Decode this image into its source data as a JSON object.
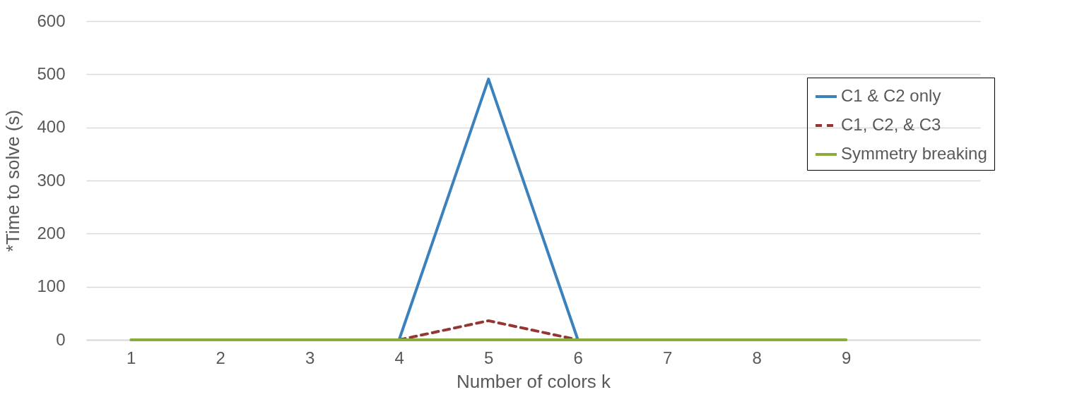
{
  "chart_data": {
    "type": "line",
    "xlabel": "Number of colors k",
    "ylabel": "*Time to solve (s)",
    "categories": [
      "1",
      "2",
      "3",
      "4",
      "5",
      "6",
      "7",
      "8",
      "9",
      null
    ],
    "series": [
      {
        "name": "C1 & C2 only",
        "color": "#3b82bd",
        "line_style": "solid",
        "values": [
          null,
          null,
          null,
          0,
          491,
          0,
          null,
          null,
          null,
          null
        ]
      },
      {
        "name": "C1, C2, & C3",
        "color": "#943634",
        "line_style": "dashed",
        "values": [
          null,
          null,
          null,
          0,
          36,
          0,
          null,
          null,
          null,
          null
        ]
      },
      {
        "name": "Symmetry breaking",
        "color": "#8aac3e",
        "line_style": "solid",
        "values": [
          0,
          0,
          0,
          0,
          0,
          0,
          0,
          0,
          0,
          null
        ]
      }
    ],
    "ylim": [
      0,
      600
    ],
    "yticks": [
      0,
      100,
      200,
      300,
      400,
      500,
      600
    ],
    "grid": "y",
    "legend": "right",
    "marker": "none"
  }
}
